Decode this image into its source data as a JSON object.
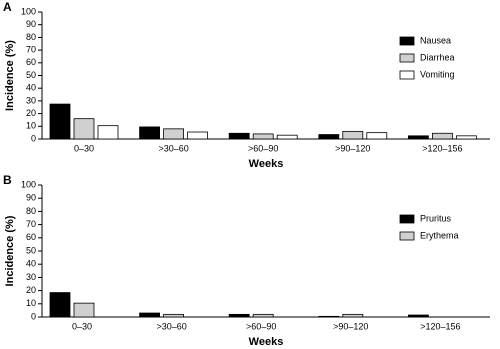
{
  "chart_data": [
    {
      "type": "bar",
      "label": "A",
      "ylabel": "Incidence (%)",
      "xlabel": "Weeks",
      "categories": [
        "0–30",
        ">30–60",
        ">60–90",
        ">90–120",
        ">120–156"
      ],
      "series": [
        {
          "name": "Nausea",
          "color": "#000000",
          "values": [
            27.5,
            9.5,
            4.5,
            3.5,
            2.5
          ]
        },
        {
          "name": "Diarrhea",
          "color": "#d0d0d0",
          "values": [
            16,
            8,
            4,
            6,
            4.5
          ]
        },
        {
          "name": "Vomiting",
          "color": "#ffffff",
          "values": [
            10.5,
            5.5,
            3,
            5,
            2.5
          ]
        }
      ],
      "ylim": [
        0,
        100
      ],
      "yticks": [
        0,
        10,
        20,
        30,
        40,
        50,
        60,
        70,
        80,
        90,
        100
      ],
      "legend": "right"
    },
    {
      "type": "bar",
      "label": "B",
      "ylabel": "Incidence (%)",
      "xlabel": "Weeks",
      "categories": [
        "0–30",
        ">30–60",
        ">60–90",
        ">90–120",
        ">120–156"
      ],
      "series": [
        {
          "name": "Pruritus",
          "color": "#000000",
          "values": [
            18.5,
            3,
            2,
            0.5,
            1.5
          ]
        },
        {
          "name": "Erythema",
          "color": "#d0d0d0",
          "values": [
            10.5,
            2,
            2,
            2,
            0
          ]
        }
      ],
      "ylim": [
        0,
        100
      ],
      "yticks": [
        0,
        10,
        20,
        30,
        40,
        50,
        60,
        70,
        80,
        90,
        100
      ],
      "legend": "right"
    }
  ]
}
